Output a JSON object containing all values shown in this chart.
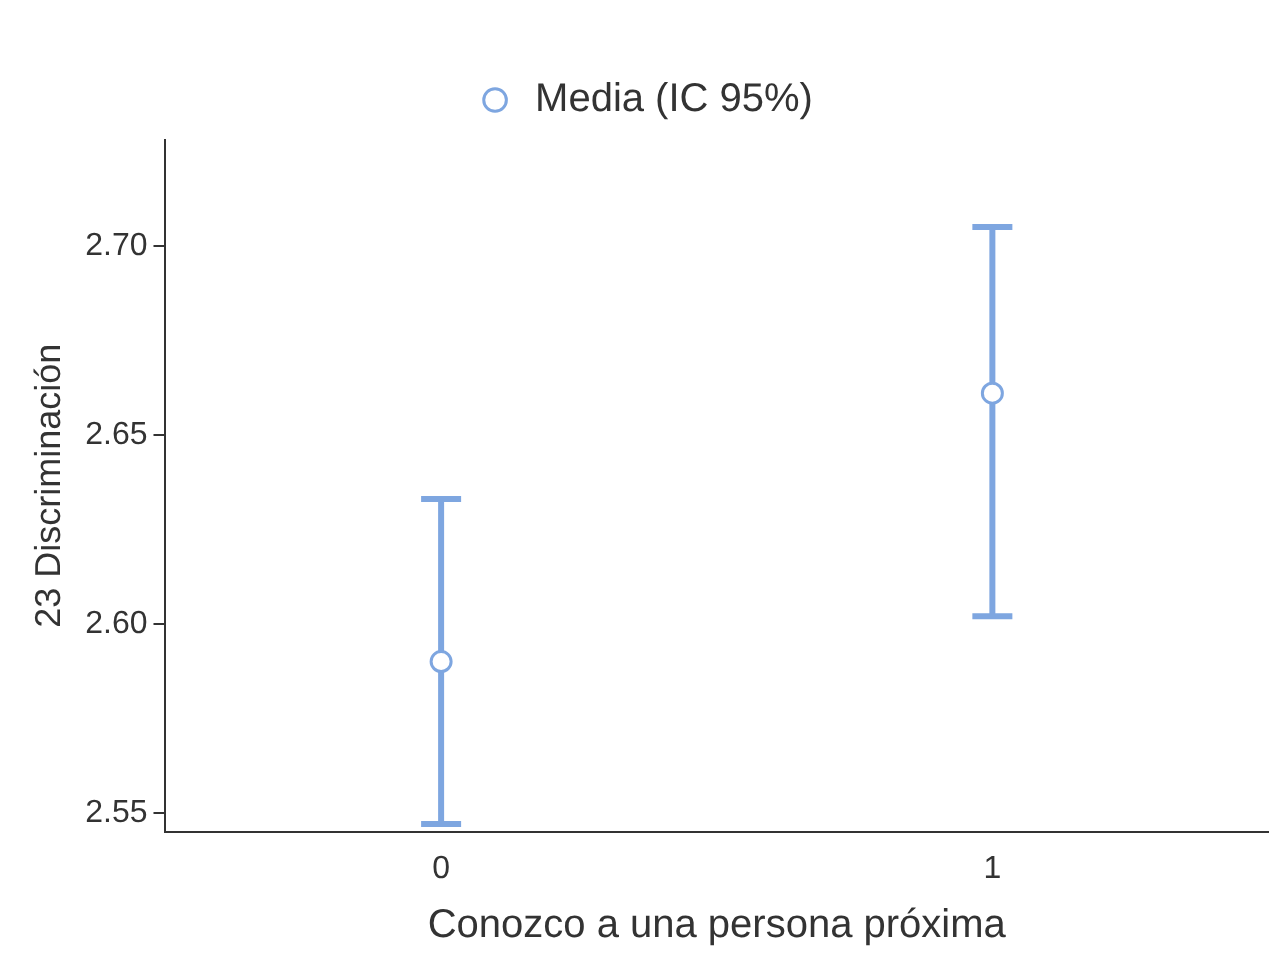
{
  "chart_data": {
    "type": "scatter",
    "xlabel": "Conozco a una persona próxima",
    "ylabel": "23 Discriminación",
    "categories": [
      "0",
      "1"
    ],
    "series": [
      {
        "name": "Media (IC 95%)",
        "color": "#7ea6e0",
        "values": [
          2.59,
          2.661
        ],
        "errors": [
          [
            2.547,
            2.633
          ],
          [
            2.602,
            2.705
          ]
        ]
      }
    ],
    "ylim": [
      2.545,
      2.728
    ],
    "yticks": [
      {
        "value": 2.55,
        "label": "2.55"
      },
      {
        "value": 2.6,
        "label": "2.60"
      },
      {
        "value": 2.65,
        "label": "2.65"
      },
      {
        "value": 2.7,
        "label": "2.70"
      }
    ],
    "grid": false,
    "legend": "top",
    "marker": "circle"
  }
}
